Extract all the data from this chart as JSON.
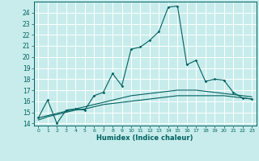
{
  "title": "",
  "xlabel": "Humidex (Indice chaleur)",
  "bg_color": "#c8ecec",
  "grid_color": "#ffffff",
  "line_color": "#006060",
  "xlim": [
    -0.5,
    23.5
  ],
  "ylim": [
    13.8,
    25.0
  ],
  "yticks": [
    14,
    15,
    16,
    17,
    18,
    19,
    20,
    21,
    22,
    23,
    24
  ],
  "xticks": [
    0,
    1,
    2,
    3,
    4,
    5,
    6,
    7,
    8,
    9,
    10,
    11,
    12,
    13,
    14,
    15,
    16,
    17,
    18,
    19,
    20,
    21,
    22,
    23
  ],
  "line1_x": [
    0,
    1,
    2,
    3,
    4,
    5,
    6,
    7,
    8,
    9,
    10,
    11,
    12,
    13,
    14,
    15,
    16,
    17,
    18,
    19,
    20,
    21,
    22,
    23
  ],
  "line1_y": [
    14.5,
    16.1,
    14.0,
    15.2,
    15.3,
    15.2,
    16.5,
    16.8,
    18.5,
    17.4,
    20.7,
    20.9,
    21.5,
    22.3,
    24.5,
    24.6,
    19.3,
    19.7,
    17.8,
    18.0,
    17.9,
    16.8,
    16.3,
    16.2
  ],
  "line2_x": [
    0,
    1,
    2,
    3,
    4,
    5,
    6,
    7,
    8,
    9,
    10,
    11,
    12,
    13,
    14,
    15,
    16,
    17,
    18,
    19,
    20,
    21,
    22,
    23
  ],
  "line2_y": [
    14.3,
    14.6,
    14.8,
    15.0,
    15.2,
    15.3,
    15.5,
    15.7,
    15.8,
    15.9,
    16.0,
    16.1,
    16.2,
    16.3,
    16.4,
    16.5,
    16.5,
    16.5,
    16.5,
    16.5,
    16.5,
    16.4,
    16.3,
    16.2
  ],
  "line3_x": [
    0,
    1,
    2,
    3,
    4,
    5,
    6,
    7,
    8,
    9,
    10,
    11,
    12,
    13,
    14,
    15,
    16,
    17,
    18,
    19,
    20,
    21,
    22,
    23
  ],
  "line3_y": [
    14.5,
    14.7,
    14.9,
    15.1,
    15.3,
    15.5,
    15.7,
    15.9,
    16.1,
    16.3,
    16.5,
    16.6,
    16.7,
    16.8,
    16.9,
    17.0,
    17.0,
    17.0,
    16.9,
    16.8,
    16.7,
    16.6,
    16.5,
    16.4
  ]
}
